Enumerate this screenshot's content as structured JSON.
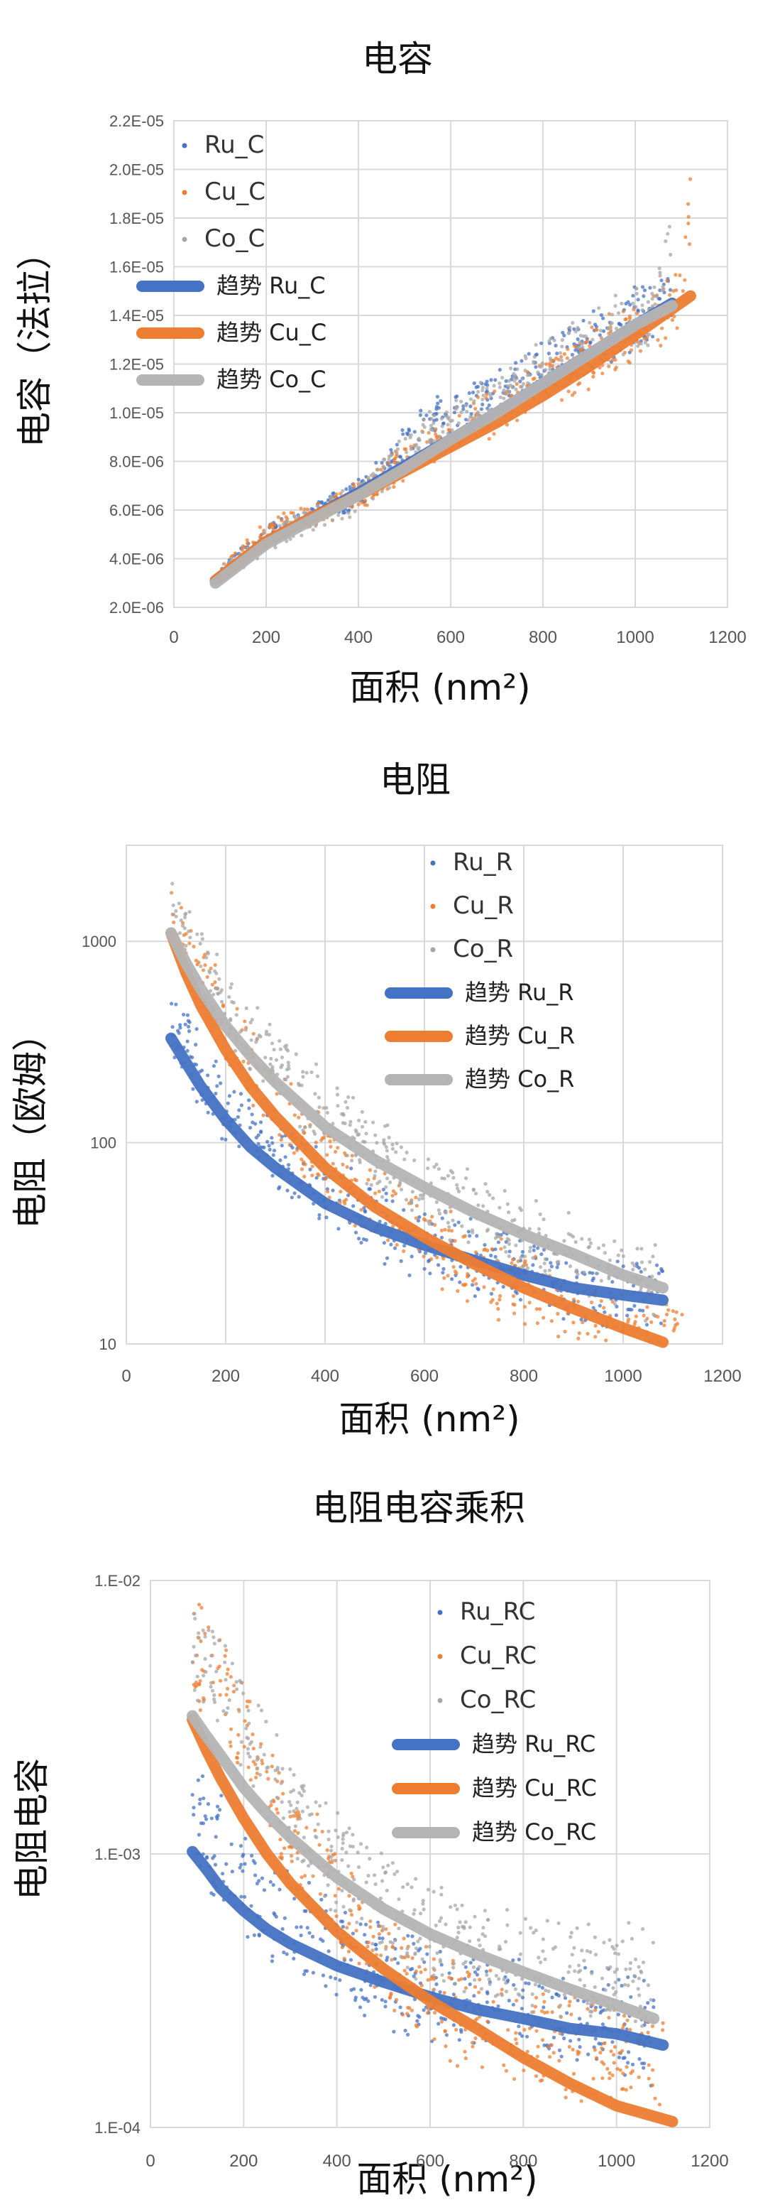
{
  "chart_data": [
    {
      "type": "scatter",
      "title": "电容",
      "xlabel": "面积 (nm²)",
      "ylabel": "电容（法拉）",
      "xlim": [
        0,
        1200
      ],
      "ylim": [
        2e-06,
        2.2e-05
      ],
      "yscale": "linear",
      "x_ticks": [
        "0",
        "200",
        "400",
        "600",
        "800",
        "1000",
        "1200"
      ],
      "y_ticks": [
        "2.0E-06",
        "4.0E-06",
        "6.0E-06",
        "8.0E-06",
        "1.0E-05",
        "1.2E-05",
        "1.4E-05",
        "1.6E-05",
        "1.8E-05",
        "2.0E-05",
        "2.2E-05"
      ],
      "grid": true,
      "legend_position": "top-left",
      "series": [
        {
          "name": "Ru_C",
          "color": "#4472c4",
          "x": [
            100,
            150,
            200,
            250,
            300,
            350,
            400,
            450,
            500,
            550,
            600,
            650,
            700,
            750,
            800,
            850,
            900,
            950,
            1000,
            1050,
            1080
          ],
          "y": [
            3.3e-06,
            4.2e-06,
            4.9e-06,
            5.4e-06,
            5.8e-06,
            6.2e-06,
            6.7e-06,
            7.5e-06,
            8.8e-06,
            9.5e-06,
            9.9e-06,
            1.03e-05,
            1.08e-05,
            1.13e-05,
            1.19e-05,
            1.24e-05,
            1.28e-05,
            1.33e-05,
            1.38e-05,
            1.44e-05,
            1.46e-05
          ]
        },
        {
          "name": "Cu_C",
          "color": "#ed7d31",
          "x": [
            100,
            150,
            200,
            250,
            300,
            350,
            400,
            450,
            500,
            550,
            600,
            650,
            700,
            750,
            800,
            850,
            900,
            950,
            1000,
            1050,
            1100,
            1120
          ],
          "y": [
            3.4e-06,
            4.3e-06,
            5e-06,
            5.4e-06,
            5.8e-06,
            6.2e-06,
            6.6e-06,
            7.2e-06,
            8e-06,
            8.6e-06,
            9.1e-06,
            9.6e-06,
            1.01e-05,
            1.06e-05,
            1.11e-05,
            1.17e-05,
            1.23e-05,
            1.28e-05,
            1.34e-05,
            1.39e-05,
            1.45e-05,
            1.9e-05
          ]
        },
        {
          "name": "Co_C",
          "color": "#a5a5a5",
          "x": [
            90,
            150,
            200,
            250,
            300,
            350,
            400,
            450,
            500,
            550,
            600,
            650,
            700,
            750,
            800,
            850,
            900,
            950,
            1000,
            1050,
            1080
          ],
          "y": [
            3.1e-06,
            4e-06,
            4.7e-06,
            5.2e-06,
            5.6e-06,
            6e-06,
            6.6e-06,
            7.4e-06,
            8.4e-06,
            9.1e-06,
            9.6e-06,
            1.01e-05,
            1.06e-05,
            1.12e-05,
            1.18e-05,
            1.23e-05,
            1.29e-05,
            1.34e-05,
            1.39e-05,
            1.43e-05,
            1.75e-05
          ]
        },
        {
          "name": "趋势 Ru_C",
          "color": "#4472c4",
          "type": "trend",
          "x": [
            90,
            200,
            300,
            400,
            500,
            600,
            700,
            800,
            900,
            1000,
            1080
          ],
          "y": [
            3.1e-06,
            4.7e-06,
            5.7e-06,
            6.7e-06,
            7.8e-06,
            8.9e-06,
            1e-05,
            1.12e-05,
            1.24e-05,
            1.36e-05,
            1.45e-05
          ]
        },
        {
          "name": "趋势 Cu_C",
          "color": "#ed7d31",
          "type": "trend",
          "x": [
            90,
            200,
            300,
            400,
            500,
            600,
            700,
            800,
            900,
            1000,
            1120
          ],
          "y": [
            3.1e-06,
            4.7e-06,
            5.7e-06,
            6.6e-06,
            7.6e-06,
            8.6e-06,
            9.6e-06,
            1.07e-05,
            1.19e-05,
            1.32e-05,
            1.48e-05
          ]
        },
        {
          "name": "趋势 Co_C",
          "color": "#b4b4b4",
          "type": "trend",
          "x": [
            90,
            200,
            300,
            400,
            500,
            600,
            700,
            800,
            900,
            1000,
            1080
          ],
          "y": [
            3e-06,
            4.6e-06,
            5.6e-06,
            6.6e-06,
            7.7e-06,
            8.9e-06,
            1e-05,
            1.12e-05,
            1.24e-05,
            1.36e-05,
            1.44e-05
          ]
        }
      ]
    },
    {
      "type": "scatter",
      "title": "电阻",
      "xlabel": "面积 (nm²)",
      "ylabel": "电阻（欧姆）",
      "xlim": [
        0,
        1200
      ],
      "ylim": [
        10,
        3000
      ],
      "yscale": "log",
      "x_ticks": [
        "0",
        "200",
        "400",
        "600",
        "800",
        "1000",
        "1200"
      ],
      "y_ticks": [
        "10",
        "100",
        "1000"
      ],
      "grid": true,
      "legend_position": "top-right",
      "series": [
        {
          "name": "Ru_R",
          "color": "#4472c4",
          "x": [
            90,
            120,
            150,
            200,
            250,
            300,
            350,
            400,
            500,
            600,
            700,
            800,
            900,
            1000,
            1080
          ],
          "y": [
            380,
            300,
            220,
            150,
            115,
            90,
            70,
            58,
            40,
            32,
            27,
            23,
            20,
            18,
            17
          ]
        },
        {
          "name": "Cu_R",
          "color": "#ed7d31",
          "x": [
            90,
            120,
            150,
            200,
            250,
            300,
            350,
            400,
            500,
            600,
            700,
            800,
            900,
            1000,
            1120
          ],
          "y": [
            1500,
            1000,
            680,
            380,
            240,
            160,
            110,
            80,
            50,
            34,
            24,
            18,
            14,
            11,
            10
          ]
        },
        {
          "name": "Co_R",
          "color": "#a5a5a5",
          "x": [
            90,
            120,
            150,
            200,
            250,
            300,
            350,
            400,
            500,
            600,
            700,
            800,
            900,
            1000,
            1080
          ],
          "y": [
            1600,
            1100,
            800,
            500,
            340,
            250,
            180,
            140,
            90,
            60,
            45,
            34,
            27,
            22,
            20
          ]
        },
        {
          "name": "趋势 Ru_R",
          "color": "#4472c4",
          "type": "trend",
          "x": [
            90,
            120,
            150,
            200,
            250,
            300,
            400,
            500,
            600,
            700,
            800,
            900,
            1000,
            1080
          ],
          "y": [
            330,
            250,
            190,
            130,
            95,
            75,
            50,
            38,
            31,
            26,
            22,
            19,
            17.5,
            16.5
          ]
        },
        {
          "name": "趋势 Cu_R",
          "color": "#ed7d31",
          "type": "trend",
          "x": [
            90,
            120,
            150,
            200,
            250,
            300,
            400,
            500,
            600,
            700,
            800,
            900,
            1000,
            1080
          ],
          "y": [
            1100,
            700,
            480,
            290,
            190,
            135,
            75,
            48,
            34,
            25,
            19,
            15,
            12,
            10.2
          ]
        },
        {
          "name": "趋势 Co_R",
          "color": "#b4b4b4",
          "type": "trend",
          "x": [
            90,
            120,
            150,
            200,
            250,
            300,
            400,
            500,
            600,
            700,
            800,
            900,
            1000,
            1080
          ],
          "y": [
            1100,
            780,
            580,
            380,
            270,
            200,
            120,
            82,
            60,
            45,
            35,
            28,
            22,
            19
          ]
        }
      ]
    },
    {
      "type": "scatter",
      "title": "电阻电容乘积",
      "xlabel": "面积 (nm²)",
      "ylabel": "电阻电容",
      "xlim": [
        0,
        1200
      ],
      "ylim": [
        0.0001,
        0.01
      ],
      "yscale": "log",
      "x_ticks": [
        "0",
        "200",
        "400",
        "600",
        "800",
        "1000",
        "1200"
      ],
      "y_ticks": [
        "1.E-04",
        "1.E-03",
        "1.E-02"
      ],
      "grid": true,
      "legend_position": "top-right",
      "series": [
        {
          "name": "Ru_RC",
          "color": "#4472c4",
          "x": [
            90,
            120,
            150,
            200,
            250,
            300,
            400,
            500,
            600,
            700,
            800,
            900,
            1000,
            1080
          ],
          "y": [
            0.00145,
            0.0012,
            0.001,
            0.0008,
            0.00065,
            0.00055,
            0.00042,
            0.00036,
            0.00032,
            0.00029,
            0.00027,
            0.00025,
            0.00024,
            0.00022
          ]
        },
        {
          "name": "Cu_RC",
          "color": "#ed7d31",
          "x": [
            90,
            120,
            150,
            200,
            250,
            300,
            400,
            500,
            600,
            700,
            800,
            900,
            1000,
            1100
          ],
          "y": [
            0.0055,
            0.005,
            0.0042,
            0.0028,
            0.0018,
            0.0012,
            0.0007,
            0.0004,
            0.00028,
            0.00025,
            0.00022,
            0.0002,
            0.00019,
            0.00018
          ]
        },
        {
          "name": "Co_RC",
          "color": "#a5a5a5",
          "x": [
            90,
            120,
            150,
            200,
            250,
            300,
            400,
            500,
            600,
            700,
            800,
            900,
            1000,
            1080
          ],
          "y": [
            0.0058,
            0.0052,
            0.0045,
            0.0032,
            0.0022,
            0.0015,
            0.0009,
            0.00065,
            0.00052,
            0.00045,
            0.0004,
            0.00038,
            0.00036,
            0.00034
          ]
        },
        {
          "name": "趋势 Ru_RC",
          "color": "#4472c4",
          "type": "trend",
          "x": [
            90,
            120,
            150,
            200,
            250,
            300,
            400,
            500,
            600,
            700,
            800,
            900,
            1000,
            1100
          ],
          "y": [
            0.00102,
            0.00088,
            0.00075,
            0.00062,
            0.00053,
            0.00047,
            0.00039,
            0.00034,
            0.0003,
            0.00027,
            0.00025,
            0.00023,
            0.00022,
            0.0002
          ]
        },
        {
          "name": "趋势 Cu_RC",
          "color": "#ed7d31",
          "type": "trend",
          "x": [
            90,
            120,
            150,
            200,
            250,
            300,
            400,
            500,
            600,
            700,
            800,
            900,
            1000,
            1120
          ],
          "y": [
            0.0031,
            0.0024,
            0.0019,
            0.00135,
            0.001,
            0.00078,
            0.00052,
            0.00038,
            0.00029,
            0.00023,
            0.00018,
            0.000145,
            0.00012,
            0.000105
          ]
        },
        {
          "name": "趋势 Co_RC",
          "color": "#b4b4b4",
          "type": "trend",
          "x": [
            90,
            120,
            150,
            200,
            250,
            300,
            400,
            500,
            600,
            700,
            800,
            900,
            1000,
            1080
          ],
          "y": [
            0.0032,
            0.0027,
            0.0023,
            0.00175,
            0.0014,
            0.00115,
            0.00082,
            0.00063,
            0.00051,
            0.00043,
            0.00037,
            0.00032,
            0.00028,
            0.00025
          ]
        }
      ]
    }
  ]
}
